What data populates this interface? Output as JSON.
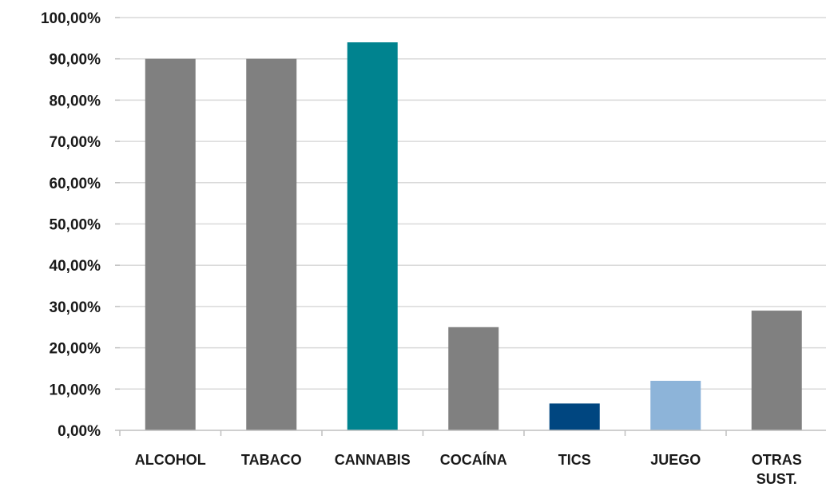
{
  "chart_data": {
    "type": "bar",
    "title": "",
    "xlabel": "",
    "ylabel": "",
    "ylim": [
      0,
      100
    ],
    "y_ticks": [
      "0,00%",
      "10,00%",
      "20,00%",
      "30,00%",
      "40,00%",
      "50,00%",
      "60,00%",
      "70,00%",
      "80,00%",
      "90,00%",
      "100,00%"
    ],
    "grid": true,
    "legend": "none",
    "categories": [
      [
        "ALCOHOL"
      ],
      [
        "TABACO"
      ],
      [
        "CANNABIS"
      ],
      [
        "COCAÍNA"
      ],
      [
        "TICS"
      ],
      [
        "JUEGO"
      ],
      [
        "OTRAS",
        "SUST."
      ]
    ],
    "values": [
      90,
      90,
      94,
      25,
      6.5,
      12,
      29
    ],
    "bar_colors": [
      "#808080",
      "#808080",
      "#00838f",
      "#808080",
      "#004680",
      "#8db4d9",
      "#808080"
    ]
  }
}
